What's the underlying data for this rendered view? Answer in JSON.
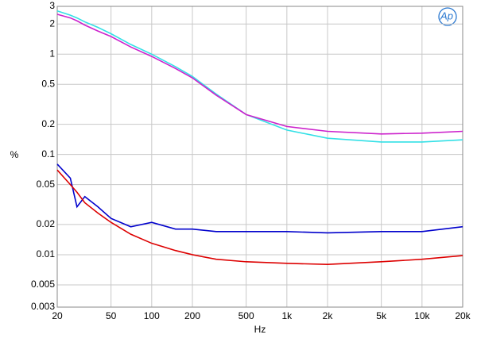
{
  "chart_data": {
    "type": "line",
    "logo": "Ap",
    "x_label": "Hz",
    "y_label": "%",
    "x": [
      20,
      25,
      28,
      32,
      40,
      50,
      70,
      100,
      150,
      200,
      300,
      500,
      1000,
      2000,
      5000,
      10000,
      20000
    ],
    "series": [
      {
        "color": "#33e0e6",
        "values": [
          2.7,
          2.45,
          2.3,
          2.1,
          1.85,
          1.6,
          1.25,
          1.0,
          0.75,
          0.6,
          0.4,
          0.25,
          0.175,
          0.145,
          0.133,
          0.133,
          0.14
        ]
      },
      {
        "color": "#cc22cc",
        "values": [
          2.5,
          2.3,
          2.15,
          1.95,
          1.7,
          1.5,
          1.18,
          0.95,
          0.72,
          0.58,
          0.39,
          0.25,
          0.19,
          0.17,
          0.16,
          0.163,
          0.17
        ]
      },
      {
        "color": "#0000cc",
        "values": [
          0.08,
          0.058,
          0.03,
          0.038,
          0.03,
          0.023,
          0.019,
          0.021,
          0.018,
          0.018,
          0.017,
          0.017,
          0.017,
          0.0165,
          0.017,
          0.017,
          0.019
        ]
      },
      {
        "color": "#dd0000",
        "values": [
          0.07,
          0.05,
          0.042,
          0.033,
          0.026,
          0.021,
          0.016,
          0.013,
          0.011,
          0.01,
          0.009,
          0.0085,
          0.0082,
          0.008,
          0.0085,
          0.009,
          0.0098
        ]
      }
    ],
    "xlim": [
      20,
      20000
    ],
    "ylim": [
      0.003,
      3
    ],
    "xlog": true,
    "ylog": true,
    "grid": true,
    "xticks": [
      20,
      50,
      100,
      200,
      500,
      {
        "value": 1000,
        "label": "1k"
      },
      {
        "value": 2000,
        "label": "2k"
      },
      {
        "value": 5000,
        "label": "5k"
      },
      {
        "value": 10000,
        "label": "10k"
      },
      {
        "value": 20000,
        "label": "20k"
      }
    ],
    "yticks": [
      3,
      2,
      1,
      0.5,
      0.2,
      0.1,
      0.05,
      0.02,
      0.01,
      0.005,
      0.003
    ]
  }
}
